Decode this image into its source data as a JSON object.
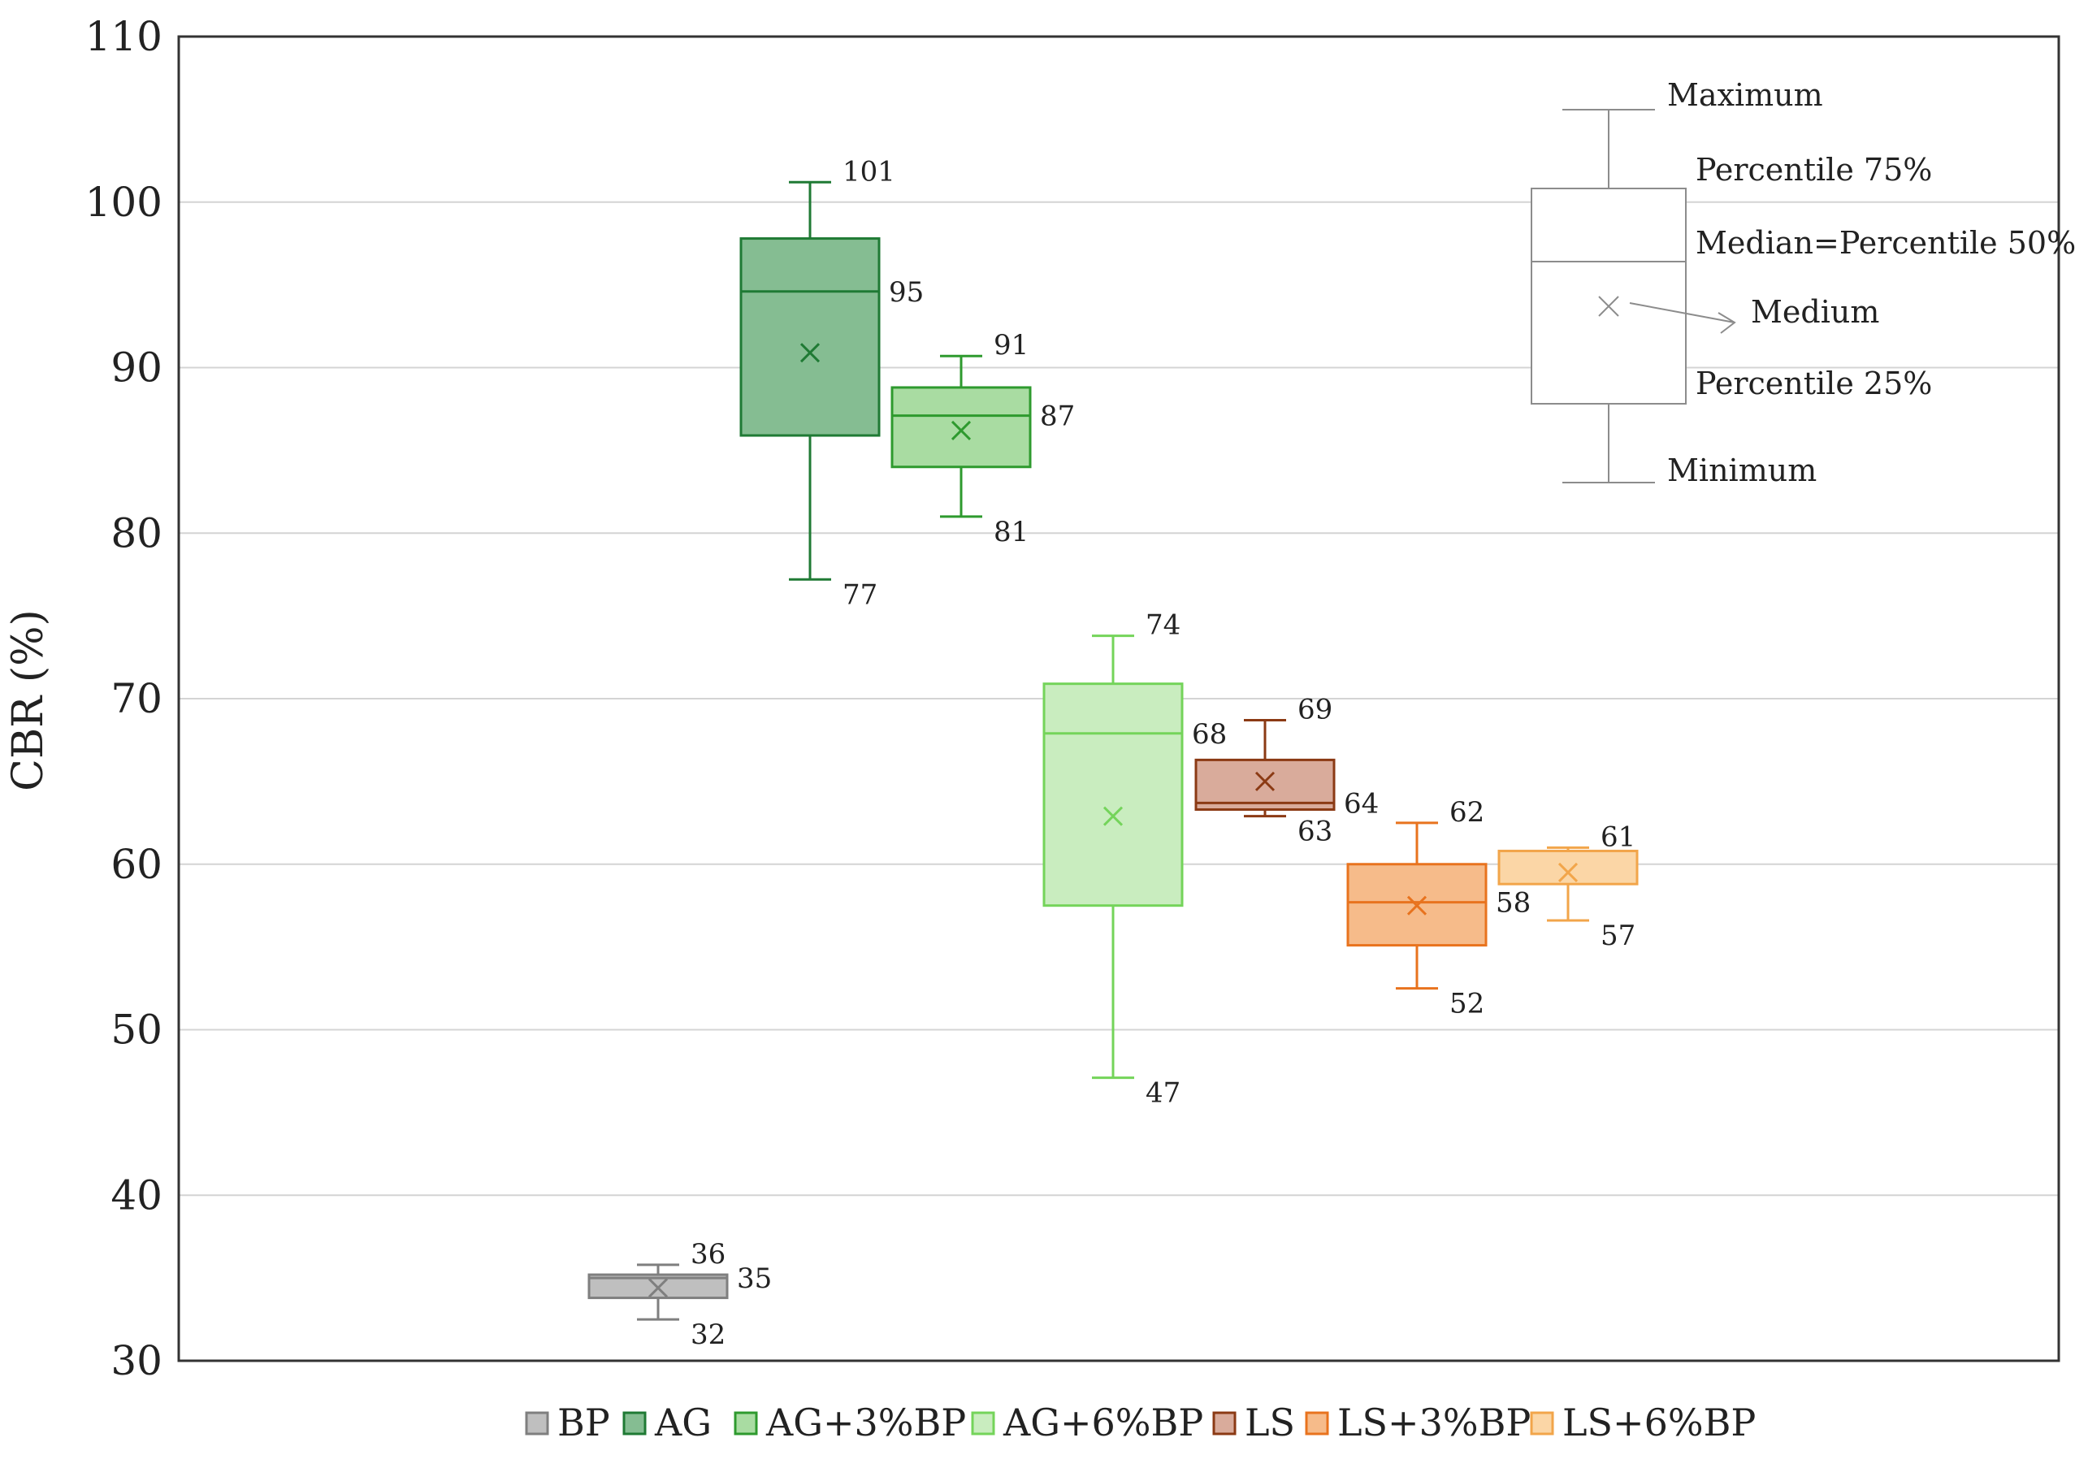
{
  "chart_data": {
    "type": "box",
    "title": "",
    "xlabel": "",
    "ylabel": "CBR (%)",
    "ylim": [
      30,
      110
    ],
    "yticks": [
      30,
      40,
      50,
      60,
      70,
      80,
      90,
      100,
      110
    ],
    "grid": true,
    "legend_position": "bottom",
    "series": [
      {
        "name": "BP",
        "color": "#bfbfbf",
        "stroke": "#7f7f7f",
        "min": 32.5,
        "q1": 33.8,
        "median": 35.0,
        "q3": 35.2,
        "max": 35.8,
        "mean": 34.4,
        "labels": {
          "max": "36",
          "median": "35",
          "min": "32"
        }
      },
      {
        "name": "AG",
        "color": "#85bd92",
        "stroke": "#1f7a34",
        "min": 77.2,
        "q1": 85.9,
        "median": 94.6,
        "q3": 97.8,
        "max": 101.2,
        "mean": 90.9,
        "labels": {
          "max": "101",
          "median": "95",
          "min": "77"
        }
      },
      {
        "name": "AG+3%BP",
        "color": "#a9dca2",
        "stroke": "#2e9a2e",
        "min": 81.0,
        "q1": 84.0,
        "median": 87.1,
        "q3": 88.8,
        "max": 90.7,
        "mean": 86.2,
        "labels": {
          "max": "91",
          "median": "87",
          "min": "81"
        }
      },
      {
        "name": "AG+6%BP",
        "color": "#c9edbf",
        "stroke": "#74d45a",
        "min": 47.1,
        "q1": 57.5,
        "median": 67.9,
        "q3": 70.9,
        "max": 73.8,
        "mean": 62.9,
        "labels": {
          "max": "74",
          "median": "68",
          "min": "47"
        }
      },
      {
        "name": "LS",
        "color": "#d9ab9b",
        "stroke": "#8b3a14",
        "min": 62.9,
        "q1": 63.3,
        "median": 63.7,
        "q3": 66.3,
        "max": 68.7,
        "mean": 65.0,
        "labels": {
          "max": "69",
          "median": "64",
          "min": "63"
        }
      },
      {
        "name": "LS+3%BP",
        "color": "#f6bb8a",
        "stroke": "#e8731e",
        "min": 52.5,
        "q1": 55.1,
        "median": 57.7,
        "q3": 60.0,
        "max": 62.5,
        "mean": 57.5,
        "labels": {
          "max": "62",
          "median": "58",
          "min": "52"
        }
      },
      {
        "name": "LS+6%BP",
        "color": "#fbd6a6",
        "stroke": "#f2a54a",
        "min": 56.6,
        "q1": 58.8,
        "median": 60.8,
        "q3": 60.8,
        "max": 61.0,
        "mean": 59.5,
        "labels": {
          "max": "61",
          "min": "57"
        }
      }
    ],
    "key": {
      "max_label": "Maximum",
      "q3_label": "Percentile 75%",
      "median_label": "Median=Percentile 50%",
      "mean_label": "Medium",
      "q1_label": "Percentile 25%",
      "min_label": "Minimum"
    }
  }
}
